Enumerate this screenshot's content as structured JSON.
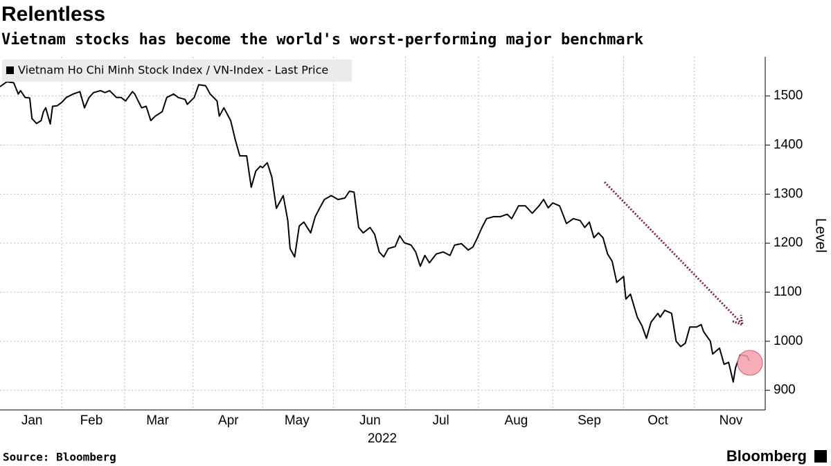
{
  "chart_data": {
    "type": "line",
    "title": "Relentless",
    "subtitle": "Vietnam stocks has become the world's worst-performing major benchmark",
    "x_label": "2022",
    "y_label": "Level",
    "source": "Source: Bloomberg",
    "brand": "Bloomberg",
    "grid": true,
    "legend": "upper left",
    "xlim": [
      0,
      335
    ],
    "ylim": [
      860,
      1580
    ],
    "xticks": [
      {
        "value": 14,
        "label": "Jan"
      },
      {
        "value": 40,
        "label": "Feb"
      },
      {
        "value": 69,
        "label": "Mar"
      },
      {
        "value": 100,
        "label": "Apr"
      },
      {
        "value": 130,
        "label": "May"
      },
      {
        "value": 162,
        "label": "Jun"
      },
      {
        "value": 193,
        "label": "Jul"
      },
      {
        "value": 226,
        "label": "Aug"
      },
      {
        "value": 258,
        "label": "Sep"
      },
      {
        "value": 288,
        "label": "Oct"
      },
      {
        "value": 320,
        "label": "Nov"
      }
    ],
    "yticks": [
      900,
      1000,
      1100,
      1200,
      1300,
      1400,
      1500
    ],
    "x": [
      0,
      3,
      6,
      8,
      9,
      11,
      13,
      14,
      16,
      18,
      19,
      20,
      22,
      23,
      25,
      27,
      29,
      32,
      35,
      37,
      39,
      41,
      44,
      46,
      48,
      51,
      53,
      55,
      58,
      59,
      62,
      64,
      66,
      68,
      71,
      73,
      76,
      78,
      81,
      82,
      85,
      87,
      90,
      92,
      95,
      96,
      98,
      101,
      103,
      105,
      108,
      110,
      112,
      114,
      115,
      117,
      119,
      121,
      124,
      126,
      127,
      129,
      131,
      133,
      136,
      138,
      140,
      142,
      145,
      148,
      151,
      153,
      155,
      157,
      159,
      162,
      164,
      166,
      168,
      170,
      173,
      175,
      177,
      180,
      182,
      184,
      186,
      188,
      191,
      194,
      197,
      199,
      202,
      205,
      207,
      209,
      211,
      213,
      216,
      219,
      222,
      224,
      227,
      230,
      233,
      236,
      238,
      240,
      242,
      245,
      248,
      251,
      254,
      256,
      258,
      260,
      262,
      264,
      266,
      268,
      270,
      273,
      274,
      276,
      279,
      281,
      283,
      285,
      288,
      289,
      291,
      294,
      296,
      298,
      300,
      302,
      305,
      307,
      308,
      311,
      312,
      315,
      317,
      319,
      321,
      322,
      324,
      327,
      328
    ],
    "series": [
      {
        "name": "Vietnam Ho Chi Minh Stock Index / VN-Index - Last Price",
        "color": "#000000",
        "values": [
          1519,
          1529,
          1527,
          1504,
          1511,
          1497,
          1496,
          1454,
          1444,
          1450,
          1468,
          1476,
          1443,
          1479,
          1480,
          1487,
          1497,
          1504,
          1509,
          1476,
          1497,
          1507,
          1511,
          1507,
          1511,
          1497,
          1497,
          1490,
          1509,
          1504,
          1476,
          1479,
          1450,
          1459,
          1468,
          1497,
          1504,
          1497,
          1493,
          1483,
          1497,
          1523,
          1521,
          1504,
          1490,
          1459,
          1476,
          1450,
          1411,
          1378,
          1378,
          1314,
          1347,
          1357,
          1354,
          1364,
          1335,
          1271,
          1297,
          1246,
          1189,
          1172,
          1235,
          1243,
          1221,
          1254,
          1272,
          1289,
          1297,
          1289,
          1292,
          1306,
          1304,
          1232,
          1221,
          1232,
          1218,
          1182,
          1172,
          1189,
          1193,
          1215,
          1201,
          1196,
          1182,
          1153,
          1175,
          1160,
          1178,
          1182,
          1175,
          1196,
          1199,
          1186,
          1192,
          1211,
          1232,
          1250,
          1254,
          1254,
          1259,
          1250,
          1276,
          1276,
          1261,
          1276,
          1289,
          1272,
          1282,
          1276,
          1240,
          1250,
          1246,
          1232,
          1243,
          1211,
          1221,
          1211,
          1178,
          1163,
          1120,
          1132,
          1086,
          1096,
          1049,
          1032,
          1006,
          1039,
          1057,
          1049,
          1063,
          1057,
          1000,
          989,
          996,
          1029,
          1029,
          1034,
          1020,
          1000,
          974,
          986,
          953,
          957,
          917,
          946,
          972,
          970,
          960
        ]
      }
    ]
  }
}
